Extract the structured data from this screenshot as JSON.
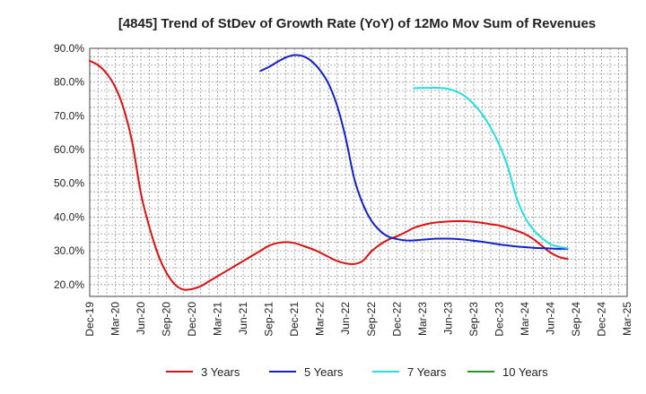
{
  "chart_data": {
    "type": "line",
    "title": "[4845]  Trend of StDev of Growth Rate (YoY) of 12Mo Mov Sum of Revenues",
    "xlabel": "",
    "ylabel": "",
    "ylim": [
      16.5,
      90
    ],
    "grid": true,
    "legend_position": "bottom",
    "y_ticks": [
      {
        "value": 20,
        "label": "20.0%"
      },
      {
        "value": 30,
        "label": "30.0%"
      },
      {
        "value": 40,
        "label": "40.0%"
      },
      {
        "value": 50,
        "label": "50.0%"
      },
      {
        "value": 60,
        "label": "60.0%"
      },
      {
        "value": 70,
        "label": "70.0%"
      },
      {
        "value": 80,
        "label": "80.0%"
      },
      {
        "value": 90,
        "label": "90.0%"
      }
    ],
    "x_ticks": [
      "Dec-19",
      "Mar-20",
      "Jun-20",
      "Sep-20",
      "Dec-20",
      "Mar-21",
      "Jun-21",
      "Sep-21",
      "Dec-21",
      "Mar-22",
      "Jun-22",
      "Sep-22",
      "Dec-22",
      "Mar-23",
      "Jun-23",
      "Sep-23",
      "Dec-23",
      "Mar-24",
      "Jun-24",
      "Sep-24",
      "Dec-24",
      "Mar-25"
    ],
    "series": [
      {
        "name": "3 Years",
        "color": "#dd1111",
        "points": [
          [
            0,
            86.3
          ],
          [
            1,
            85
          ],
          [
            2,
            82.5
          ],
          [
            3,
            78.5
          ],
          [
            4,
            72
          ],
          [
            5,
            62
          ],
          [
            6,
            47
          ],
          [
            7,
            37
          ],
          [
            8,
            29
          ],
          [
            9,
            23.5
          ],
          [
            10,
            20
          ],
          [
            11,
            18.5
          ],
          [
            12,
            18.7
          ],
          [
            13,
            19.5
          ],
          [
            14,
            21
          ],
          [
            15,
            22.5
          ],
          [
            16,
            24
          ],
          [
            17,
            25.5
          ],
          [
            18,
            27
          ],
          [
            19,
            28.5
          ],
          [
            20,
            30
          ],
          [
            21,
            31.5
          ],
          [
            22,
            32.3
          ],
          [
            23,
            32.6
          ],
          [
            24,
            32.3
          ],
          [
            25,
            31.5
          ],
          [
            26,
            30.6
          ],
          [
            27,
            29.5
          ],
          [
            28,
            28.2
          ],
          [
            29,
            27
          ],
          [
            30,
            26.3
          ],
          [
            31,
            26.1
          ],
          [
            32,
            27
          ],
          [
            33,
            29.8
          ],
          [
            34,
            31.8
          ],
          [
            35,
            33.3
          ],
          [
            36,
            34.3
          ],
          [
            37,
            35.5
          ],
          [
            38,
            36.8
          ],
          [
            39,
            37.6
          ],
          [
            40,
            38.2
          ],
          [
            41,
            38.5
          ],
          [
            42,
            38.7
          ],
          [
            43,
            38.8
          ],
          [
            44,
            38.8
          ],
          [
            45,
            38.6
          ],
          [
            46,
            38.3
          ],
          [
            47,
            37.9
          ],
          [
            48,
            37.5
          ],
          [
            49,
            36.8
          ],
          [
            50,
            36
          ],
          [
            51,
            35
          ],
          [
            52,
            33.5
          ],
          [
            53,
            31.5
          ],
          [
            54,
            29.5
          ],
          [
            55,
            28.2
          ],
          [
            56,
            27.6
          ]
        ]
      },
      {
        "name": "5 Years",
        "color": "#1122cc",
        "points": [
          [
            20,
            83.3
          ],
          [
            21,
            84.5
          ],
          [
            22,
            86
          ],
          [
            23,
            87.3
          ],
          [
            24,
            88
          ],
          [
            25,
            87.7
          ],
          [
            26,
            86.2
          ],
          [
            27,
            83.5
          ],
          [
            28,
            79.5
          ],
          [
            29,
            73
          ],
          [
            30,
            63.5
          ],
          [
            31,
            51.5
          ],
          [
            32,
            44
          ],
          [
            33,
            39
          ],
          [
            34,
            36
          ],
          [
            35,
            34.2
          ],
          [
            36,
            33.5
          ],
          [
            37,
            33.1
          ],
          [
            38,
            33.1
          ],
          [
            39,
            33.3
          ],
          [
            40,
            33.5
          ],
          [
            41,
            33.6
          ],
          [
            42,
            33.6
          ],
          [
            43,
            33.5
          ],
          [
            44,
            33.3
          ],
          [
            45,
            33
          ],
          [
            46,
            32.7
          ],
          [
            47,
            32.3
          ],
          [
            48,
            31.9
          ],
          [
            49,
            31.6
          ],
          [
            50,
            31.3
          ],
          [
            51,
            31.1
          ],
          [
            52,
            30.9
          ],
          [
            53,
            30.8
          ],
          [
            54,
            30.7
          ],
          [
            55,
            30.6
          ],
          [
            56,
            30.6
          ]
        ]
      },
      {
        "name": "7 Years",
        "color": "#22e0e0",
        "points": [
          [
            38,
            78.2
          ],
          [
            39,
            78.3
          ],
          [
            40,
            78.3
          ],
          [
            41,
            78.3
          ],
          [
            42,
            78
          ],
          [
            43,
            77.2
          ],
          [
            44,
            75.8
          ],
          [
            45,
            73.5
          ],
          [
            46,
            70.5
          ],
          [
            47,
            66.5
          ],
          [
            48,
            61.5
          ],
          [
            49,
            55
          ],
          [
            50,
            46
          ],
          [
            51,
            40
          ],
          [
            52,
            36.3
          ],
          [
            53,
            33.8
          ],
          [
            54,
            32
          ],
          [
            55,
            31.2
          ],
          [
            56,
            30.8
          ]
        ]
      },
      {
        "name": "10 Years",
        "color": "#229922",
        "points": []
      }
    ]
  }
}
